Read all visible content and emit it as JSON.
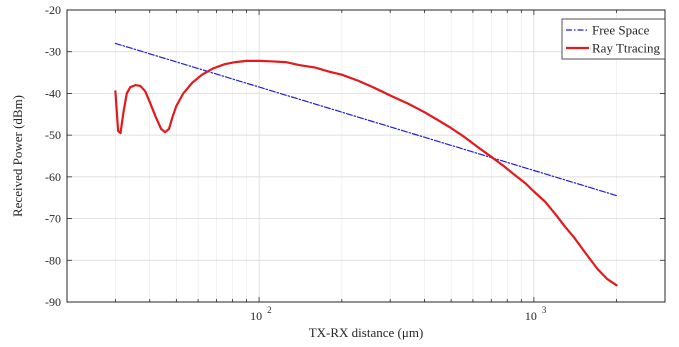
{
  "chart_data": {
    "type": "line",
    "xlabel": "TX-RX distance (μm)",
    "ylabel": "Received Power (dBm)",
    "x_scale": "log",
    "xlim": [
      20,
      3000
    ],
    "ylim": [
      -90,
      -20
    ],
    "x_ticks": [
      {
        "value": 100,
        "base": "10",
        "exp": "2"
      },
      {
        "value": 1000,
        "base": "10",
        "exp": "3"
      }
    ],
    "y_ticks": [
      -20,
      -30,
      -40,
      -50,
      -60,
      -70,
      -80,
      -90
    ],
    "grid": true,
    "legend_position": "top-right",
    "series": [
      {
        "name": "Free Space",
        "color": "#1f1fd6",
        "style": "dash-dot",
        "x": [
          30,
          2000
        ],
        "y": [
          -28,
          -64.5
        ]
      },
      {
        "name": "Ray Ttracing",
        "color": "#e31a1c",
        "style": "solid",
        "x": [
          30,
          30.7,
          31.3,
          32.2,
          33,
          34,
          35.5,
          37,
          38.5,
          40,
          42,
          44,
          45.5,
          47,
          48.5,
          50,
          53,
          57,
          62,
          68,
          75,
          82,
          90,
          100,
          110,
          125,
          140,
          160,
          180,
          200,
          230,
          260,
          300,
          350,
          400,
          450,
          500,
          560,
          630,
          700,
          780,
          850,
          930,
          1000,
          1100,
          1200,
          1300,
          1400,
          1550,
          1700,
          1850,
          2000
        ],
        "y": [
          -39.5,
          -49,
          -49.5,
          -44,
          -40,
          -38.5,
          -38,
          -38.2,
          -39.5,
          -42,
          -45.5,
          -48.5,
          -49.3,
          -48.5,
          -45.5,
          -43,
          -40,
          -37.5,
          -35.5,
          -34,
          -33,
          -32.5,
          -32.2,
          -32.2,
          -32.3,
          -32.5,
          -33.2,
          -33.8,
          -34.8,
          -35.5,
          -37,
          -38.5,
          -40.5,
          -42.5,
          -44.5,
          -46.5,
          -48.3,
          -50.5,
          -53,
          -55.2,
          -57.5,
          -59.5,
          -61.5,
          -63.5,
          -66,
          -69,
          -72,
          -74.5,
          -78.5,
          -82,
          -84.5,
          -86
        ]
      }
    ]
  }
}
